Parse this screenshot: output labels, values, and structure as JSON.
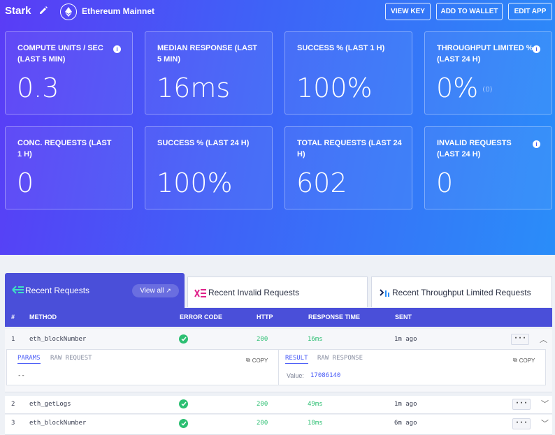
{
  "header": {
    "app_name": "Stark",
    "network": "Ethereum Mainnet",
    "buttons": [
      "VIEW KEY",
      "ADD TO WALLET",
      "EDIT APP"
    ]
  },
  "stats": [
    {
      "label": "COMPUTE UNITS / SEC (LAST 5 MIN)",
      "value": "0.3",
      "info": true
    },
    {
      "label": "MEDIAN RESPONSE (LAST 5 MIN)",
      "value": "16ms"
    },
    {
      "label": "SUCCESS % (LAST 1 H)",
      "value": "100%"
    },
    {
      "label": "THROUGHPUT LIMITED % (LAST 24 H)",
      "value": "0%",
      "sub": "(0)",
      "info": true
    },
    {
      "label": "CONC. REQUESTS (LAST 1 H)",
      "value": "0"
    },
    {
      "label": "SUCCESS % (LAST 24 H)",
      "value": "100%"
    },
    {
      "label": "TOTAL REQUESTS (LAST 24 H)",
      "value": "602"
    },
    {
      "label": "INVALID REQUESTS (LAST 24 H)",
      "value": "0",
      "info": true
    }
  ],
  "tabs": {
    "recent": "Recent Requests",
    "view_all": "View all",
    "invalid": "Recent Invalid Requests",
    "throughput": "Recent Throughput Limited Requests"
  },
  "table": {
    "columns": [
      "#",
      "METHOD",
      "ERROR CODE",
      "HTTP",
      "RESPONSE TIME",
      "SENT"
    ],
    "rows": [
      {
        "num": "1",
        "method": "eth_blockNumber",
        "http": "200",
        "time": "16ms",
        "sent": "1m ago"
      },
      {
        "num": "2",
        "method": "eth_getLogs",
        "http": "200",
        "time": "49ms",
        "sent": "1m ago"
      },
      {
        "num": "3",
        "method": "eth_blockNumber",
        "http": "200",
        "time": "18ms",
        "sent": "6m ago"
      }
    ]
  },
  "detail": {
    "params": "PARAMS",
    "raw_request": "RAW REQUEST",
    "copy": "COPY",
    "params_value": "--",
    "result": "RESULT",
    "raw_response": "RAW RESPONSE",
    "value_label": "Value:",
    "value": "17086140"
  }
}
